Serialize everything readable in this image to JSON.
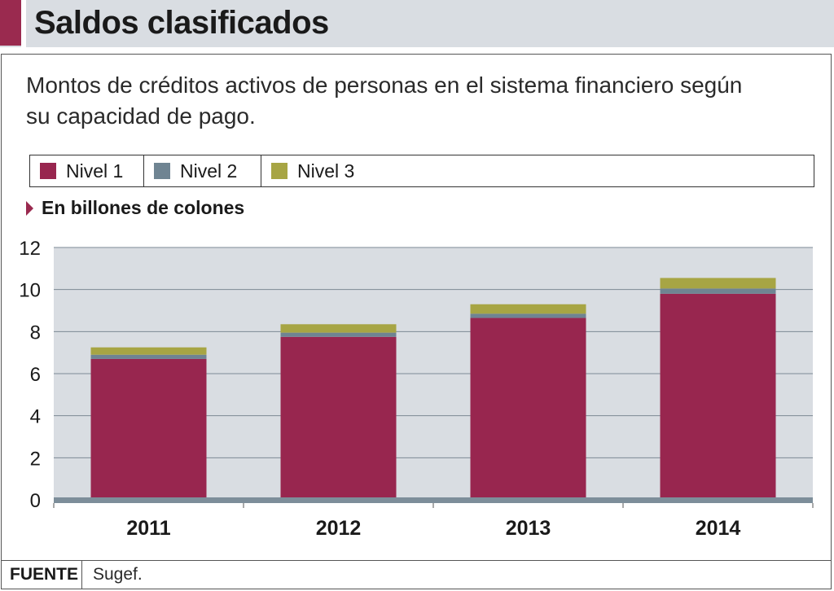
{
  "header": {
    "title": "Saldos clasificados",
    "accent_color": "#9a2a4f"
  },
  "subtitle": "Montos de créditos activos de personas en el sistema financiero según su capacidad de pago.",
  "unit_label": "En billones de colones",
  "source": {
    "label": "FUENTE",
    "text": "Sugef."
  },
  "chart_data": {
    "type": "bar",
    "stacked": true,
    "categories": [
      "2011",
      "2012",
      "2013",
      "2014"
    ],
    "series": [
      {
        "name": "Nivel 1",
        "color": "#98264f",
        "values": [
          6.7,
          7.75,
          8.65,
          9.8
        ]
      },
      {
        "name": "Nivel 2",
        "color": "#6f8492",
        "values": [
          0.2,
          0.2,
          0.2,
          0.25
        ]
      },
      {
        "name": "Nivel 3",
        "color": "#a7a544",
        "values": [
          0.35,
          0.4,
          0.45,
          0.5
        ]
      }
    ],
    "ylim": [
      0,
      12
    ],
    "yticks": [
      "0",
      "2",
      "4",
      "6",
      "8",
      "10",
      "12"
    ],
    "ylabel": "En billones de colones",
    "grid": true,
    "legend_position": "top"
  }
}
